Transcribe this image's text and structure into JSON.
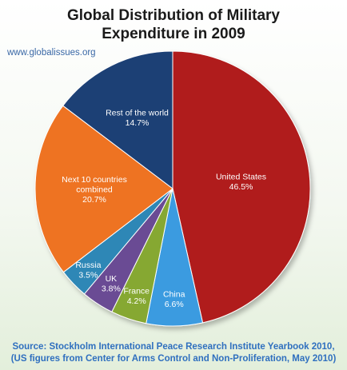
{
  "title_lines": [
    "Global Distribution of Military",
    "Expenditure in 2009"
  ],
  "website": "www.globalissues.org",
  "source_lines": [
    "Source: Stockholm International Peace Research Institute Yearbook 2010,",
    "(US figures from Center for Arms Control and Non-Proliferation, May 2010)"
  ],
  "chart_data": {
    "type": "pie",
    "title": "Global Distribution of Military Expenditure in 2009",
    "unit": "%",
    "slices": [
      {
        "label": "United States",
        "value": 46.5,
        "value_text": "46.5%",
        "color": "#b01c1c"
      },
      {
        "label": "China",
        "value": 6.6,
        "value_text": "6.6%",
        "color": "#3a9be0"
      },
      {
        "label": "France",
        "value": 4.2,
        "value_text": "4.2%",
        "color": "#86a833"
      },
      {
        "label": "UK",
        "value": 3.8,
        "value_text": "3.8%",
        "color": "#6b4c94"
      },
      {
        "label": "Russia",
        "value": 3.5,
        "value_text": "3.5%",
        "color": "#2e87b6"
      },
      {
        "label": "Next 10 countries combined",
        "value": 20.7,
        "value_text": "20.7%",
        "color": "#ee7322"
      },
      {
        "label": "Rest of the world",
        "value": 14.7,
        "value_text": "14.7%",
        "color": "#1d3f75"
      }
    ]
  }
}
